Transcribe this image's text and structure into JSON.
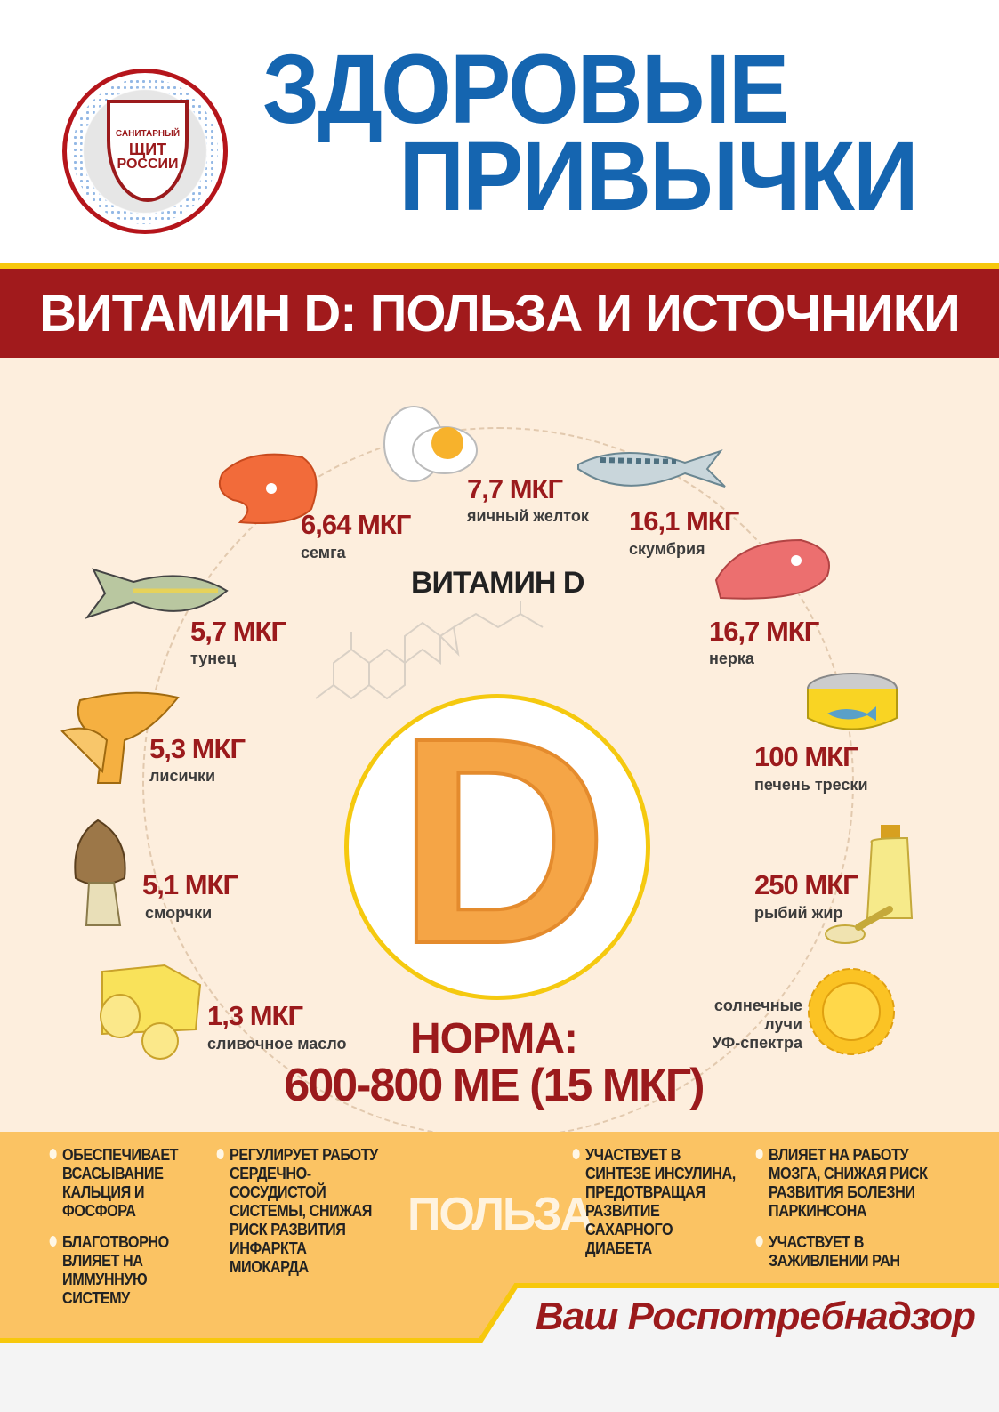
{
  "header": {
    "title_line1": "ЗДОРОВЫЕ",
    "title_line2": "ПРИВЫЧКИ",
    "logo": {
      "line1": "САНИТАРНЫЙ",
      "line2": "ЩИТ",
      "line3": "РОССИИ"
    }
  },
  "banner": "ВИТАМИН D: ПОЛЬЗА И ИСТОЧНИКИ",
  "center": {
    "heading": "ВИТАМИН D",
    "letter": "D",
    "norm_label": "НОРМА:",
    "norm_value": "600-800 МЕ (15 МКГ)"
  },
  "sources": [
    {
      "amount": "7,7 МКГ",
      "name": "яичный желток",
      "icon": "egg-icon"
    },
    {
      "amount": "6,64 МКГ",
      "name": "семга",
      "icon": "salmon-steak-icon"
    },
    {
      "amount": "16,1 МКГ",
      "name": "скумбрия",
      "icon": "mackerel-icon"
    },
    {
      "amount": "5,7 МКГ",
      "name": "тунец",
      "icon": "tuna-icon"
    },
    {
      "amount": "16,7 МКГ",
      "name": "нерка",
      "icon": "sockeye-steak-icon"
    },
    {
      "amount": "5,3 МКГ",
      "name": "лисички",
      "icon": "chanterelle-icon"
    },
    {
      "amount": "100 МКГ",
      "name": "печень трески",
      "icon": "canned-fish-icon"
    },
    {
      "amount": "5,1 МКГ",
      "name": "сморчки",
      "icon": "morel-icon"
    },
    {
      "amount": "250 МКГ",
      "name": "рыбий жир",
      "icon": "fish-oil-icon"
    },
    {
      "amount": "1,3 МКГ",
      "name": "сливочное масло",
      "icon": "butter-icon"
    }
  ],
  "sun": {
    "line1": "солнечные",
    "line2": "лучи",
    "line3": "УФ-спектра",
    "icon": "sun-icon"
  },
  "benefits": {
    "label": "ПОЛЬЗА",
    "col1": [
      "ОБЕСПЕЧИВАЕТ ВСАСЫВАНИЕ КАЛЬЦИЯ И ФОСФОРА",
      "БЛАГОТВОРНО ВЛИЯЕТ НА ИММУННУЮ СИСТЕМУ"
    ],
    "col2": [
      "РЕГУЛИРУЕТ РАБОТУ СЕРДЕЧНО-СОСУДИСТОЙ СИСТЕМЫ, СНИЖАЯ РИСК РАЗВИТИЯ ИНФАРКТА МИОКАРДА"
    ],
    "col3": [
      "УЧАСТВУЕТ В СИНТЕЗЕ ИНСУЛИНА, ПРЕДОТВРАЩАЯ РАЗВИТИЕ САХАРНОГО ДИАБЕТА"
    ],
    "col4": [
      "ВЛИЯЕТ НА РАБОТУ МОЗГА, СНИЖАЯ РИСК РАЗВИТИЯ БОЛЕЗНИ ПАРКИНСОНА",
      "УЧАСТВУЕТ В ЗАЖИВЛЕНИИ РАН"
    ]
  },
  "signature": "Ваш Роспотребнадзор",
  "colors": {
    "blue": "#1565b0",
    "red": "#a11a1c",
    "gold": "#f7c80c",
    "beige": "#fdeedd",
    "orange": "#fbc363"
  }
}
